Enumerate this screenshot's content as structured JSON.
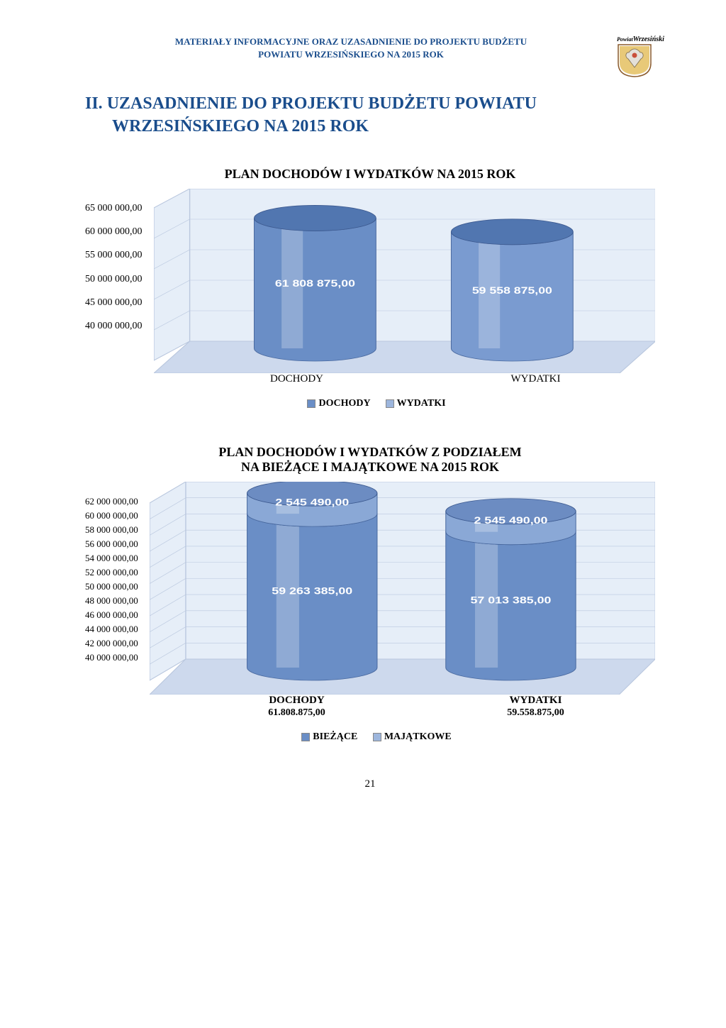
{
  "doc_header_line1": "MATERIAŁY INFORMACYJNE ORAZ UZASADNIENIE DO PROJEKTU BUDŻETU",
  "doc_header_line2": "POWIATU WRZESIŃSKIEGO NA 2015 ROK",
  "crest_label": "Wrzesiński",
  "crest_prefix": "Powiat",
  "section_number": "II.",
  "section_title_line1": "UZASADNIENIE DO PROJEKTU BUDŻETU POWIATU",
  "section_title_line2": "WRZESIŃSKIEGO NA 2015 ROK",
  "chart1": {
    "title": "PLAN DOCHODÓW I WYDATKÓW NA 2015 ROK",
    "type": "cylinder-bar-3d",
    "background_color": "#d6e3f3",
    "wall_color": "#e6eef8",
    "grid_color": "#b9c7de",
    "floor_color": "#cdd9ed",
    "categories": [
      "DOCHODY",
      "WYDATKI"
    ],
    "values": [
      61808875.0,
      59558875.0
    ],
    "value_labels": [
      "61 808 875,00",
      "59 558 875,00"
    ],
    "bar_colors": [
      "#6a8ec6",
      "#7a9bd0"
    ],
    "bar_top_color": "#5176b0",
    "ylim": [
      40000000,
      65000000
    ],
    "ytick_step": 5000000,
    "yticks": [
      "65 000 000,00",
      "60 000 000,00",
      "55 000 000,00",
      "50 000 000,00",
      "45 000 000,00",
      "40 000 000,00"
    ],
    "legend_items": [
      "DOCHODY",
      "WYDATKI"
    ],
    "legend_colors": [
      "#6a8ec6",
      "#9db6dd"
    ]
  },
  "chart2": {
    "title_line1": "PLAN DOCHODÓW I WYDATKÓW Z PODZIAŁEM",
    "title_line2": "NA BIEŻĄCE I MAJĄTKOWE NA 2015 ROK",
    "type": "stacked-cylinder-bar-3d",
    "background_color": "#d6e3f3",
    "wall_color": "#e6eef8",
    "grid_color": "#b9c7de",
    "floor_color": "#cdd9ed",
    "categories": [
      "DOCHODY",
      "WYDATKI"
    ],
    "category_sublabels": [
      "61.808.875,00",
      "59.558.875,00"
    ],
    "series": [
      {
        "name": "BIEŻĄCE",
        "color": "#6a8ec6",
        "top_color": "#5176b0",
        "values": [
          59263385.0,
          57013385.0
        ],
        "labels": [
          "59 263 385,00",
          "57 013 385,00"
        ]
      },
      {
        "name": "MAJĄTKOWE",
        "color": "#8aa8d6",
        "top_color": "#6c8cc2",
        "values": [
          2545490.0,
          2545490.0
        ],
        "labels": [
          "2 545 490,00",
          "2 545 490,00"
        ]
      }
    ],
    "ylim": [
      40000000,
      62000000
    ],
    "ytick_step": 2000000,
    "yticks": [
      "62 000 000,00",
      "60 000 000,00",
      "58 000 000,00",
      "56 000 000,00",
      "54 000 000,00",
      "52 000 000,00",
      "50 000 000,00",
      "48 000 000,00",
      "46 000 000,00",
      "44 000 000,00",
      "42 000 000,00",
      "40 000 000,00"
    ],
    "legend_items": [
      "BIEŻĄCE",
      "MAJĄTKOWE"
    ],
    "legend_colors": [
      "#6a8ec6",
      "#9db6dd"
    ]
  },
  "pagenum": "21"
}
